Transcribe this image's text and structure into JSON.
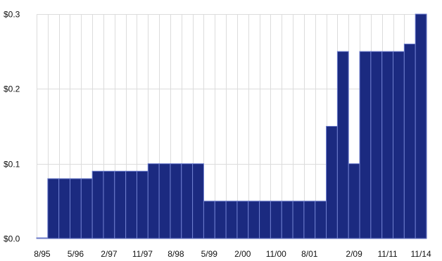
{
  "chart_data": {
    "type": "bar",
    "title": "",
    "xlabel": "",
    "ylabel": "",
    "ylim": [
      0,
      0.3
    ],
    "grid": true,
    "legend": "none",
    "bar_color": "#1b2a80",
    "bar_edge_color": "#6f7fcf",
    "grid_color": "#dcdcdc",
    "y_ticks": [
      {
        "value": 0.0,
        "label": "$0.0"
      },
      {
        "value": 0.1,
        "label": "$0.1"
      },
      {
        "value": 0.2,
        "label": "$0.2"
      },
      {
        "value": 0.3,
        "label": "$0.3"
      }
    ],
    "x_ticks": [
      {
        "index": 0,
        "label": "8/95"
      },
      {
        "index": 3,
        "label": "5/96"
      },
      {
        "index": 6,
        "label": "2/97"
      },
      {
        "index": 9,
        "label": "11/97"
      },
      {
        "index": 12,
        "label": "8/98"
      },
      {
        "index": 15,
        "label": "5/99"
      },
      {
        "index": 18,
        "label": "2/00"
      },
      {
        "index": 21,
        "label": "11/00"
      },
      {
        "index": 24,
        "label": "8/01"
      },
      {
        "index": 28,
        "label": "2/09"
      },
      {
        "index": 31,
        "label": "11/11"
      },
      {
        "index": 34,
        "label": "11/14"
      }
    ],
    "values": [
      0.0,
      0.08,
      0.08,
      0.08,
      0.08,
      0.09,
      0.09,
      0.09,
      0.09,
      0.09,
      0.1,
      0.1,
      0.1,
      0.1,
      0.1,
      0.05,
      0.05,
      0.05,
      0.05,
      0.05,
      0.05,
      0.05,
      0.05,
      0.05,
      0.05,
      0.05,
      0.15,
      0.25,
      0.1,
      0.25,
      0.25,
      0.25,
      0.25,
      0.26,
      0.3
    ]
  }
}
